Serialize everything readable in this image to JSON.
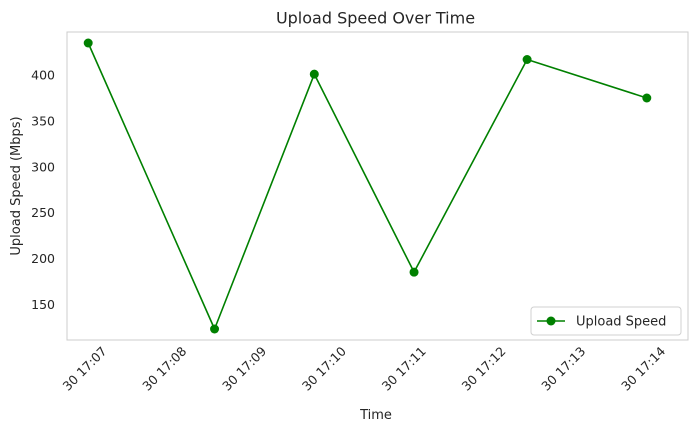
{
  "chart_data": {
    "type": "line",
    "title": "Upload Speed Over Time",
    "xlabel": "Time",
    "ylabel": "Upload Speed (Mbps)",
    "x_tick_labels": [
      "30 17:07",
      "30 17:08",
      "30 17:09",
      "30 17:10",
      "30 17:11",
      "30 17:12",
      "30 17:13",
      "30 17:14"
    ],
    "y_ticks": [
      150,
      200,
      250,
      300,
      350,
      400
    ],
    "ylim": [
      111,
      447
    ],
    "grid": false,
    "legend_position": "lower right",
    "series": [
      {
        "name": "Upload Speed",
        "color": "#008000",
        "marker": "circle",
        "points": [
          {
            "x": "30 17:06:50",
            "y": 435
          },
          {
            "x": "30 17:08:25",
            "y": 123
          },
          {
            "x": "30 17:09:40",
            "y": 401
          },
          {
            "x": "30 17:10:55",
            "y": 185
          },
          {
            "x": "30 17:12:20",
            "y": 417
          },
          {
            "x": "30 17:13:50",
            "y": 375
          }
        ]
      }
    ]
  }
}
